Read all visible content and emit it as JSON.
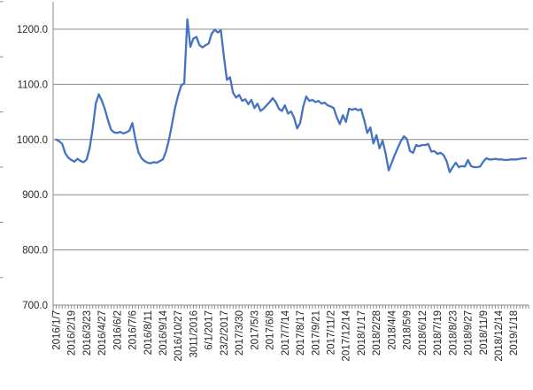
{
  "chart_data": {
    "type": "line",
    "title": "",
    "xlabel": "",
    "ylabel": "",
    "legend": "none",
    "grid": "horizontal",
    "ylim": [
      700,
      1250
    ],
    "ytick_values": [
      700,
      800,
      900,
      1000,
      1100,
      1200
    ],
    "ytick_labels": [
      "700.0",
      "800.0",
      "900.0",
      "1000.0",
      "1100.0",
      "1200.0"
    ],
    "x_tick_labels": [
      "2016/1/7",
      "2016/2/19",
      "2016/3/23",
      "2016/4/27",
      "2016/6/2",
      "2016/7/6",
      "2016/8/11",
      "2016/9/14",
      "2016/10/27",
      "3011/2016",
      "6/1/2017",
      "23/2/2017",
      "2017/3/30",
      "2017/5/3",
      "2017/6/8",
      "2017/7/14",
      "2017/8/17",
      "2017/9/21",
      "2017/11/2",
      "2017/12/14",
      "2018/1/17",
      "2018/2/28",
      "2018/4/4",
      "2018/5/9",
      "2018/6/12",
      "2018/7/19",
      "2018/8/23",
      "2018/9/27",
      "2018/11/9",
      "2018/12/14",
      "2019/1/18"
    ],
    "label_every_n_points": 5,
    "values": [
      1000,
      997,
      992,
      975,
      967,
      963,
      960,
      965,
      961,
      959,
      964,
      985,
      1020,
      1065,
      1082,
      1070,
      1055,
      1035,
      1018,
      1013,
      1012,
      1014,
      1011,
      1013,
      1016,
      1030,
      1000,
      977,
      966,
      961,
      958,
      957,
      959,
      958,
      961,
      964,
      978,
      1000,
      1028,
      1058,
      1080,
      1098,
      1102,
      1218,
      1168,
      1183,
      1186,
      1171,
      1167,
      1171,
      1174,
      1192,
      1199,
      1194,
      1198,
      1150,
      1108,
      1113,
      1085,
      1076,
      1081,
      1070,
      1073,
      1064,
      1072,
      1057,
      1065,
      1052,
      1056,
      1062,
      1068,
      1075,
      1068,
      1056,
      1052,
      1062,
      1047,
      1051,
      1040,
      1020,
      1030,
      1060,
      1078,
      1070,
      1072,
      1068,
      1070,
      1065,
      1067,
      1062,
      1060,
      1057,
      1040,
      1028,
      1044,
      1032,
      1056,
      1054,
      1056,
      1053,
      1055,
      1035,
      1012,
      1022,
      993,
      1008,
      984,
      998,
      975,
      944,
      958,
      972,
      985,
      997,
      1006,
      1001,
      979,
      976,
      990,
      988,
      990,
      990,
      992,
      978,
      979,
      974,
      976,
      972,
      961,
      941,
      950,
      958,
      950,
      952,
      951,
      963,
      952,
      950,
      950,
      951,
      960,
      966,
      964,
      964,
      965,
      964,
      964,
      963,
      963,
      964,
      964,
      964,
      965,
      966,
      966
    ],
    "colors": {
      "line": "#4472C4",
      "gridline": "#8C8C8C",
      "axis": "#898989",
      "tick": "#898989",
      "label_text": "#262626"
    }
  }
}
